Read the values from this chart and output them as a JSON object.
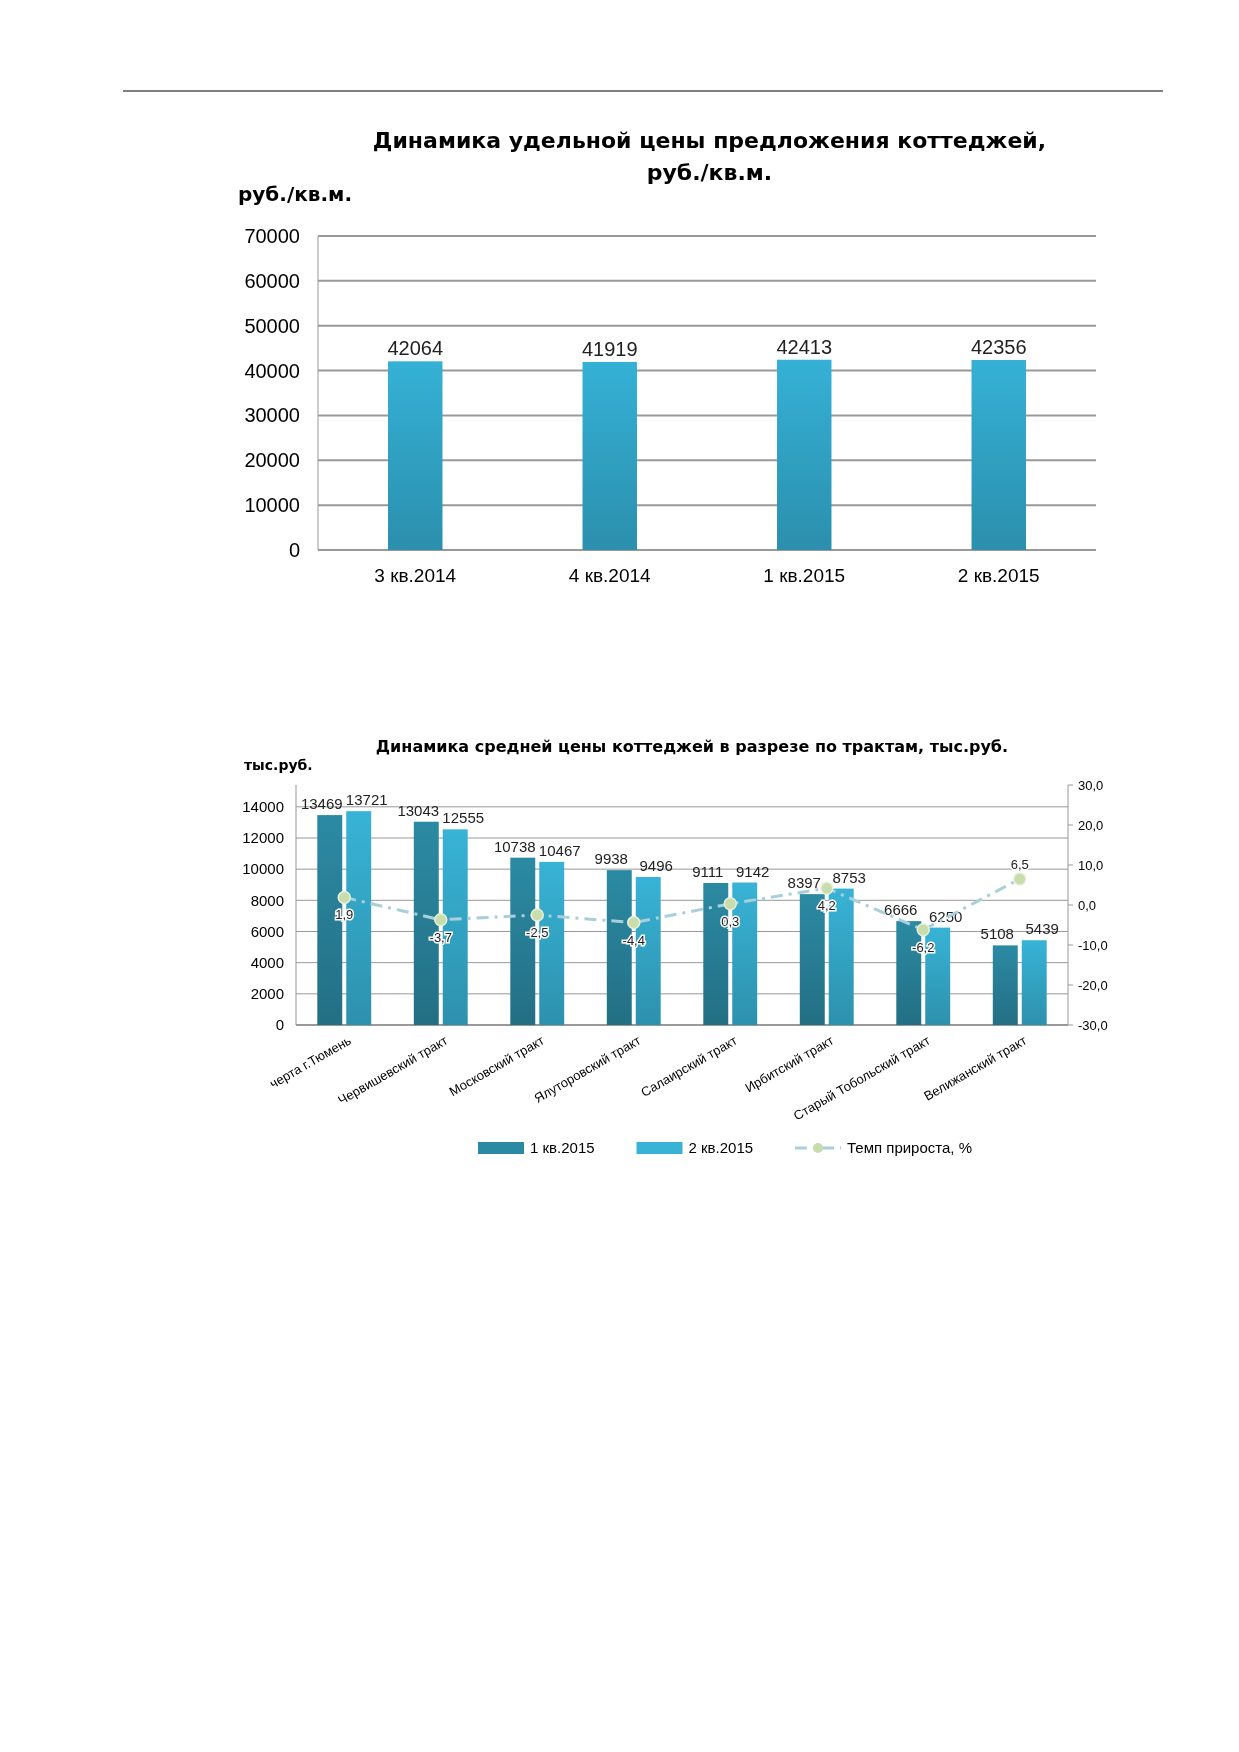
{
  "chart_data": [
    {
      "type": "bar",
      "title": "Динамика удельной цены предложения коттеджей,\nруб./кв.м.",
      "ylabel": "руб./кв.м.",
      "categories": [
        "3 кв.2014",
        "4 кв.2014",
        "1 кв.2015",
        "2 кв.2015"
      ],
      "values": [
        42064,
        41919,
        42413,
        42356
      ],
      "color": "#35b1d6",
      "ylim": [
        0,
        70000
      ],
      "yticks": [
        0,
        10000,
        20000,
        30000,
        40000,
        50000,
        60000,
        70000
      ],
      "grid": "y",
      "data_labels": true
    },
    {
      "type": "bar",
      "title": "Динамика средней цены коттеджей в разрезе по трактам, тыс.руб.",
      "ylabel": "тыс.руб.",
      "categories": [
        "черта г.Тюмень",
        "Червишевский тракт",
        "Московский тракт",
        "Ялуторовский тракт",
        "Салаирский тракт",
        "Ирбитский тракт",
        "Старый Тобольский тракт",
        "Велижанский тракт"
      ],
      "series": [
        {
          "name": "1 кв.2015",
          "color": "#2b8aa3",
          "values": [
            13469,
            13043,
            10738,
            9938,
            9111,
            8397,
            6666,
            5108
          ]
        },
        {
          "name": "2 кв.2015",
          "color": "#38b3d6",
          "values": [
            13721,
            12555,
            10467,
            9496,
            9142,
            8753,
            6250,
            5439
          ]
        },
        {
          "name": "Темп прироста, %",
          "type": "line",
          "axis": "y2",
          "color": "#a9cfdb",
          "marker": "circle",
          "line_style": "dashdot",
          "values": [
            1.9,
            -3.7,
            -2.5,
            -4.4,
            0.3,
            4.2,
            -6.2,
            6.5
          ],
          "value_labels": [
            "1,9",
            "-3,7",
            "-2,5",
            "-4,4",
            "0,3",
            "4,2",
            "-6,2",
            "6,5"
          ]
        }
      ],
      "ylim": [
        0,
        15400
      ],
      "yticks": [
        0,
        2000,
        4000,
        6000,
        8000,
        10000,
        12000,
        14000
      ],
      "y2lim": [
        -30,
        30
      ],
      "y2ticks": [
        {
          "value": -30,
          "label": "-30,0"
        },
        {
          "value": -20,
          "label": "-20,0"
        },
        {
          "value": -10,
          "label": "-10,0"
        },
        {
          "value": 0,
          "label": "0,0"
        },
        {
          "value": 10,
          "label": "10,0"
        },
        {
          "value": 20,
          "label": "20,0"
        },
        {
          "value": 30,
          "label": "30,0"
        }
      ],
      "grid": "y",
      "data_labels": true,
      "legend": "bottom"
    }
  ]
}
